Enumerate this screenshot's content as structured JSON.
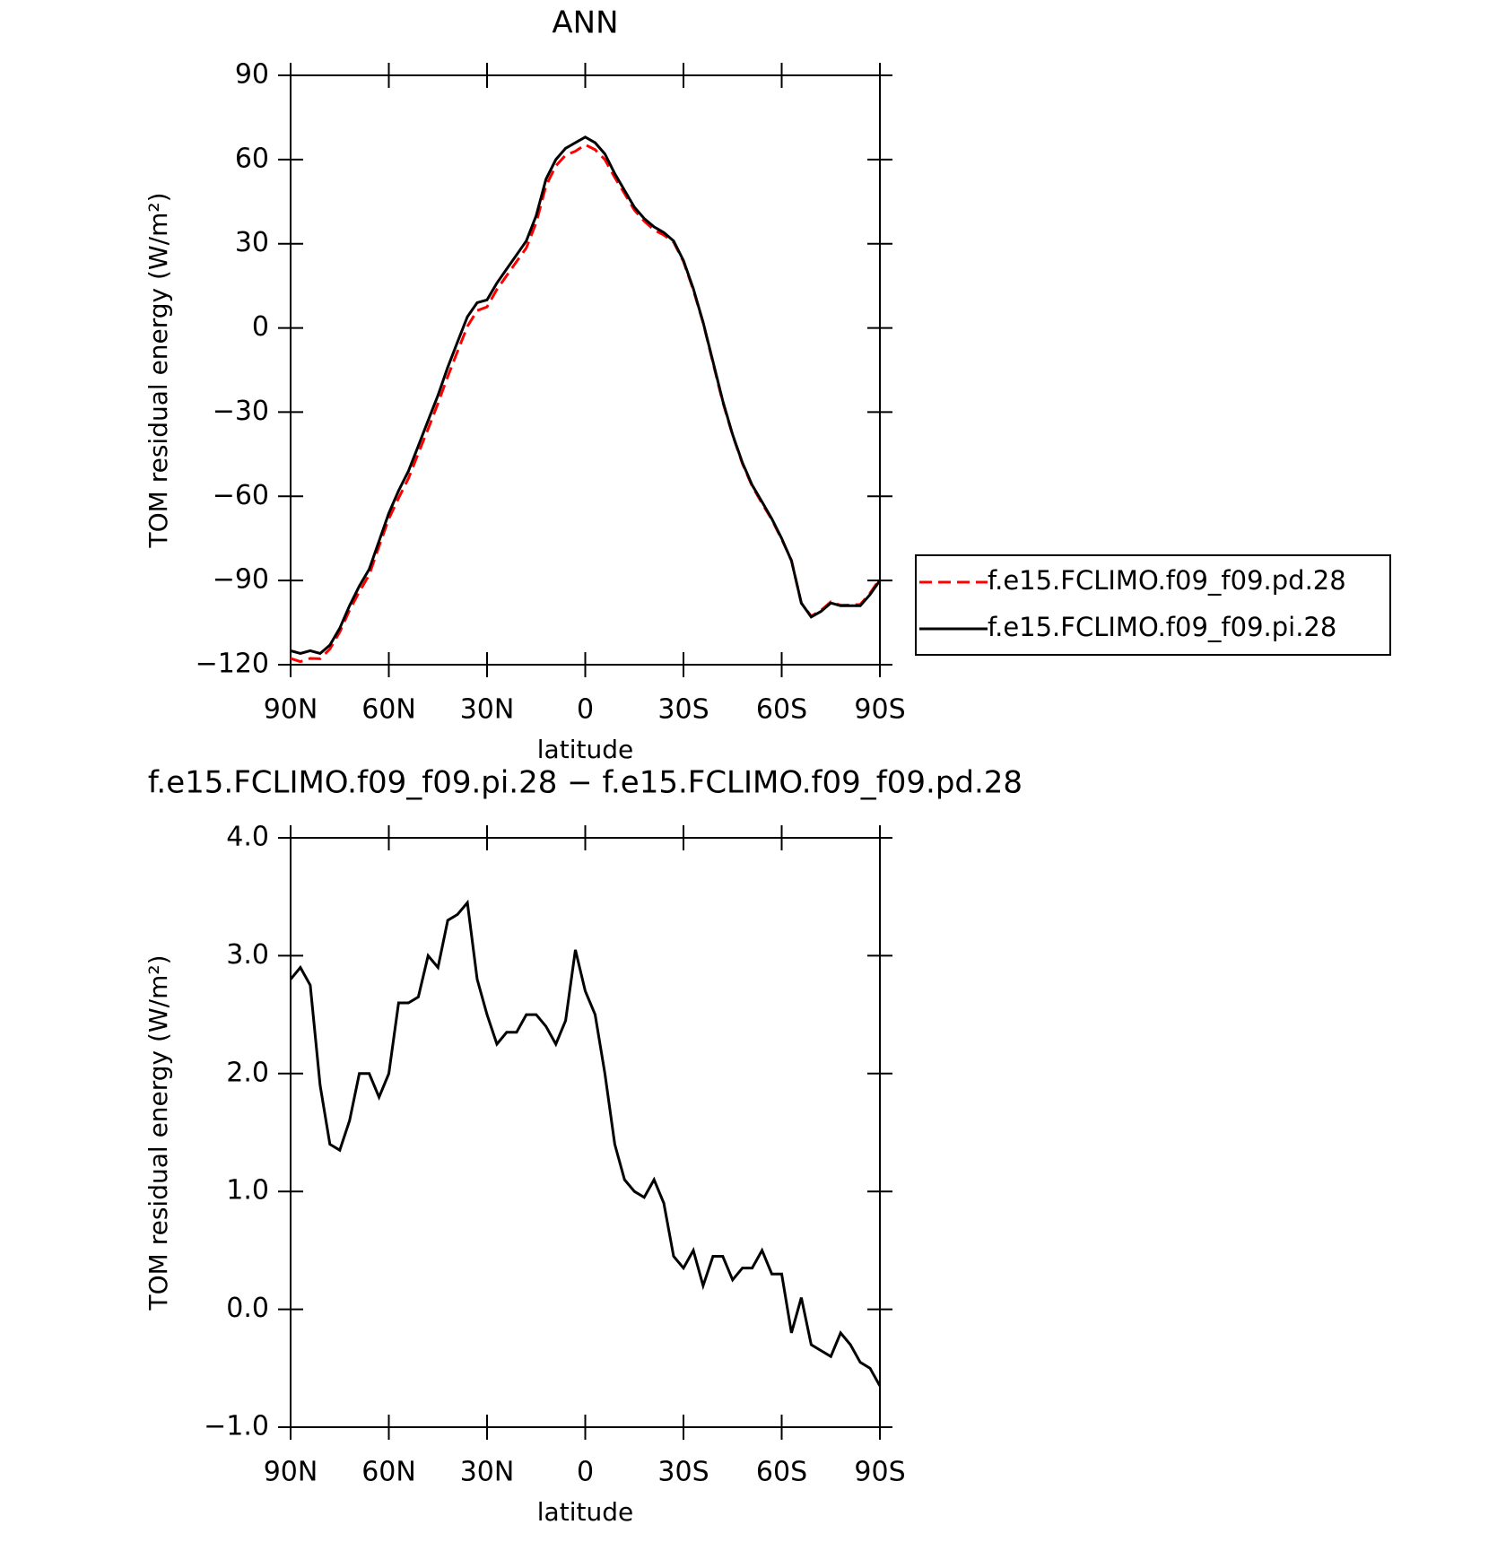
{
  "chart_data": [
    {
      "type": "line",
      "title": "ANN",
      "xlabel": "latitude",
      "ylabel": "TOM residual energy (W/m²)",
      "x": [
        90,
        87,
        84,
        81,
        78,
        75,
        72,
        69,
        66,
        63,
        60,
        57,
        54,
        51,
        48,
        45,
        42,
        39,
        36,
        33,
        30,
        27,
        24,
        21,
        18,
        15,
        12,
        9,
        6,
        3,
        0,
        -3,
        -6,
        -9,
        -12,
        -15,
        -18,
        -21,
        -24,
        -27,
        -30,
        -33,
        -36,
        -39,
        -42,
        -45,
        -48,
        -51,
        -54,
        -57,
        -60,
        -63,
        -66,
        -69,
        -72,
        -75,
        -78,
        -81,
        -84,
        -87,
        -90
      ],
      "series": [
        {
          "name": "f.e15.FCLIMO.f09_f09.pd.28",
          "color": "#ff0000",
          "dash": "dashed",
          "values": [
            -117.8,
            -118.9,
            -117.75,
            -117.9,
            -114.4,
            -108.35,
            -100.6,
            -94,
            -88,
            -77.8,
            -68,
            -60.6,
            -53.6,
            -44.65,
            -36,
            -26.9,
            -17.3,
            -8.35,
            0.55,
            6.2,
            7.5,
            13.75,
            18.65,
            23.65,
            28.5,
            37.5,
            50.6,
            57.75,
            61.55,
            62.95,
            65.3,
            63.5,
            60,
            53.6,
            47.9,
            42,
            38.05,
            34.9,
            33.1,
            30.55,
            23.65,
            13.5,
            1.8,
            -12.45,
            -26.45,
            -38.25,
            -48.35,
            -56.35,
            -62.5,
            -68.3,
            -75.3,
            -82.8,
            -98.1,
            -102.7,
            -100.65,
            -97.6,
            -98.8,
            -98.7,
            -98.55,
            -94.5,
            -89.35
          ]
        },
        {
          "name": "f.e15.FCLIMO.f09_f09.pi.28",
          "color": "#000000",
          "values": [
            -115,
            -116,
            -115,
            -116,
            -113,
            -107,
            -99,
            -92,
            -86,
            -76,
            -66,
            -58,
            -51,
            -42,
            -33,
            -24,
            -14,
            -5,
            4,
            9,
            10,
            16,
            21,
            26,
            31,
            40,
            53,
            60,
            64,
            66,
            68,
            66,
            62,
            55,
            49,
            43,
            39,
            36,
            34,
            31,
            24,
            14,
            2,
            -12,
            -26,
            -38,
            -48,
            -56,
            -62,
            -68,
            -75,
            -83,
            -98,
            -103,
            -101,
            -98,
            -99,
            -99,
            -99,
            -95,
            -90
          ]
        }
      ],
      "xlim": [
        90,
        -90
      ],
      "xticks": [
        {
          "value": 90,
          "label": "90N"
        },
        {
          "value": 60,
          "label": "60N"
        },
        {
          "value": 30,
          "label": "30N"
        },
        0,
        {
          "value": -30,
          "label": "30S"
        },
        {
          "value": -60,
          "label": "60S"
        },
        {
          "value": -90,
          "label": "90S"
        }
      ],
      "ylim": [
        -120,
        90
      ],
      "yticks": [
        {
          "value": -120,
          "label": "−120"
        },
        {
          "value": -90,
          "label": "−90"
        },
        {
          "value": -60,
          "label": "−60"
        },
        {
          "value": -30,
          "label": "−30"
        },
        0,
        30,
        60,
        90
      ],
      "legend": "right"
    },
    {
      "type": "line",
      "title": "f.e15.FCLIMO.f09_f09.pi.28 − f.e15.FCLIMO.f09_f09.pd.28",
      "xlabel": "latitude",
      "ylabel": "TOM residual energy (W/m²)",
      "x": [
        90,
        87,
        84,
        81,
        78,
        75,
        72,
        69,
        66,
        63,
        60,
        57,
        54,
        51,
        48,
        45,
        42,
        39,
        36,
        33,
        30,
        27,
        24,
        21,
        18,
        15,
        12,
        9,
        6,
        3,
        0,
        -3,
        -6,
        -9,
        -12,
        -15,
        -18,
        -21,
        -24,
        -27,
        -30,
        -33,
        -36,
        -39,
        -42,
        -45,
        -48,
        -51,
        -54,
        -57,
        -60,
        -63,
        -66,
        -69,
        -72,
        -75,
        -78,
        -81,
        -84,
        -87,
        -90
      ],
      "series": [
        {
          "color": "#000000",
          "values": [
            2.8,
            2.9,
            2.75,
            1.9,
            1.4,
            1.35,
            1.6,
            2.0,
            2.0,
            1.8,
            2.0,
            2.6,
            2.6,
            2.65,
            3.0,
            2.9,
            3.3,
            3.35,
            3.45,
            2.8,
            2.5,
            2.25,
            2.35,
            2.35,
            2.5,
            2.5,
            2.4,
            2.25,
            2.45,
            3.05,
            2.7,
            2.5,
            2.0,
            1.4,
            1.1,
            1.0,
            0.95,
            1.1,
            0.9,
            0.45,
            0.35,
            0.5,
            0.2,
            0.45,
            0.45,
            0.25,
            0.35,
            0.35,
            0.5,
            0.3,
            0.3,
            -0.2,
            0.1,
            -0.3,
            -0.35,
            -0.4,
            -0.2,
            -0.3,
            -0.45,
            -0.5,
            -0.65
          ]
        }
      ],
      "xlim": [
        90,
        -90
      ],
      "xticks": [
        {
          "value": 90,
          "label": "90N"
        },
        {
          "value": 60,
          "label": "60N"
        },
        {
          "value": 30,
          "label": "30N"
        },
        0,
        {
          "value": -30,
          "label": "30S"
        },
        {
          "value": -60,
          "label": "60S"
        },
        {
          "value": -90,
          "label": "90S"
        }
      ],
      "ylim": [
        -1,
        4
      ],
      "yticks": [
        {
          "value": -1,
          "label": "−1.0"
        },
        {
          "value": 0,
          "label": "0.0"
        },
        {
          "value": 1,
          "label": "1.0"
        },
        {
          "value": 2,
          "label": "2.0"
        },
        {
          "value": 3,
          "label": "3.0"
        },
        {
          "value": 4,
          "label": "4.0"
        }
      ]
    }
  ]
}
